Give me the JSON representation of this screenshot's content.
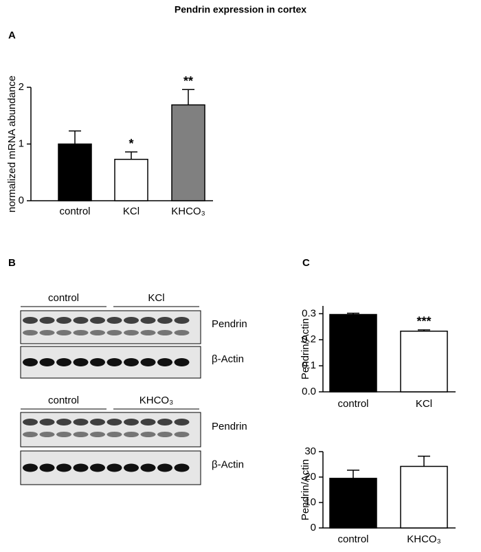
{
  "title": "Pendrin expression in cortex",
  "blot": {
    "panel": "B",
    "groups": [
      {
        "labels": [
          "control",
          "KCl"
        ],
        "bands": [
          "Pendrin",
          "β-Actin"
        ]
      },
      {
        "labels": [
          "control",
          "KHCO₃"
        ],
        "bands": [
          "Pendrin",
          "β-Actin"
        ]
      }
    ]
  },
  "chart_data": [
    {
      "type": "bar",
      "panel": "A",
      "ylabel": "normalized mRNA abundance",
      "categories": [
        "control",
        "KCl",
        "KHCO₃"
      ],
      "values": [
        1.0,
        0.73,
        1.69
      ],
      "errors": [
        0.23,
        0.13,
        0.27
      ],
      "annotations": [
        null,
        "*",
        "**"
      ],
      "colors": [
        "#000000",
        "#ffffff",
        "#808080"
      ],
      "ylim": [
        0,
        2
      ],
      "yticks": [
        0,
        1,
        2
      ]
    },
    {
      "type": "bar",
      "panel": "C",
      "ylabel": "Pendrin/Actin",
      "categories": [
        "control",
        "KCl"
      ],
      "values": [
        0.297,
        0.233
      ],
      "errors": [
        0.005,
        0.005
      ],
      "annotations": [
        null,
        "***"
      ],
      "colors": [
        "#000000",
        "#ffffff"
      ],
      "ylim": [
        0,
        0.33
      ],
      "yticks": [
        {
          "value": 0,
          "label": "0.0"
        },
        0.1,
        0.2,
        0.3
      ]
    },
    {
      "type": "bar",
      "ylabel": "Pendrin/Actin",
      "categories": [
        "control",
        "KHCO₃"
      ],
      "values": [
        19.5,
        24.2
      ],
      "errors": [
        3.2,
        4.0
      ],
      "annotations": [
        null,
        null
      ],
      "colors": [
        "#000000",
        "#ffffff"
      ],
      "ylim": [
        0,
        30
      ],
      "yticks": [
        0,
        10,
        20,
        30
      ]
    }
  ]
}
